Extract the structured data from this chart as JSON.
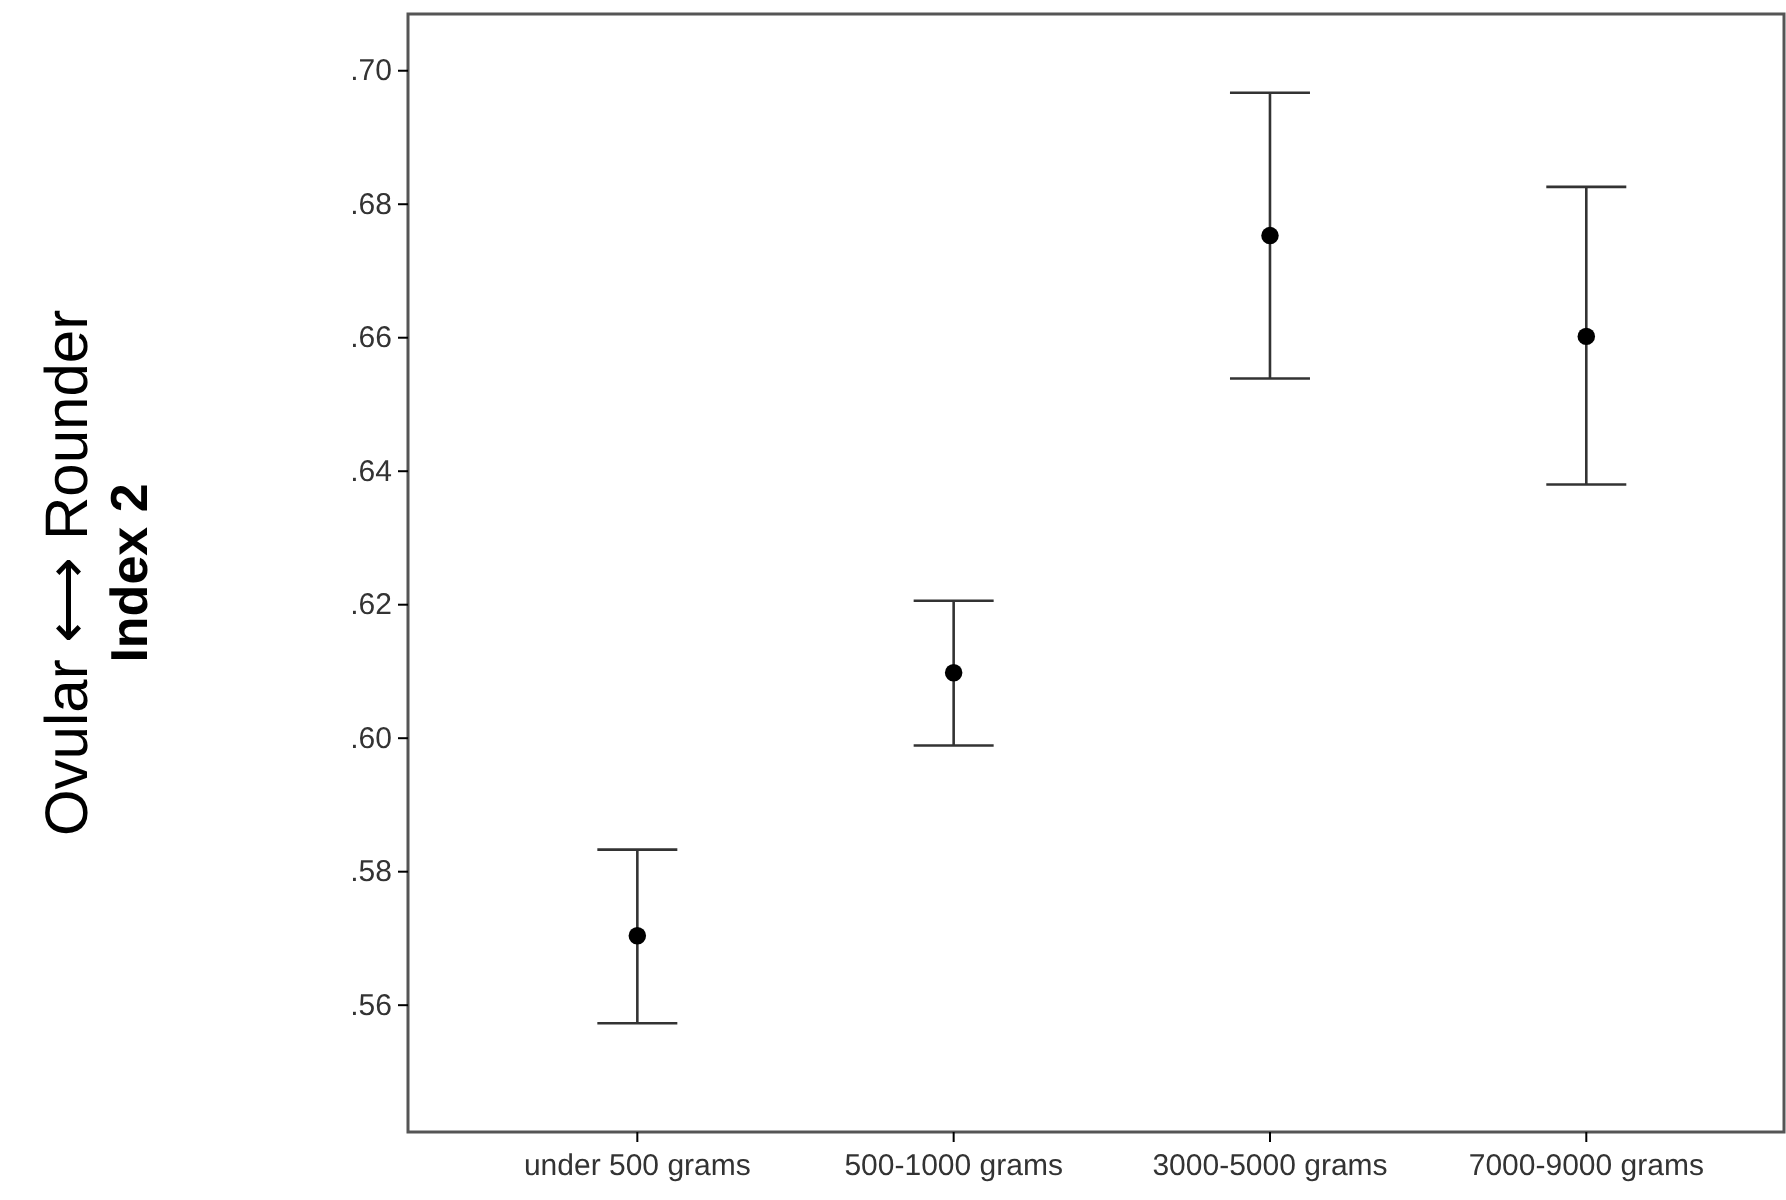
{
  "chart_data": {
    "type": "scatter",
    "ylabel": "Ovular ⟷ Rounder\nIndex 2",
    "categories": [
      "under 500 grams",
      "500-1000 grams",
      "3000-5000 grams",
      "7000-9000 grams"
    ],
    "series": [
      {
        "color": "#000000",
        "values": [
          0.5704,
          0.6098,
          0.6753,
          0.6602
        ],
        "errors": [
          [
            0.5573,
            0.5833
          ],
          [
            0.5989,
            0.6206
          ],
          [
            0.6539,
            0.6967
          ],
          [
            0.638,
            0.6826
          ]
        ]
      }
    ],
    "ylim": [
      0.541,
      0.7085
    ],
    "yticks": [
      {
        "value": 0.56,
        "label": ".56"
      },
      {
        "value": 0.58,
        "label": ".58"
      },
      {
        "value": 0.6,
        "label": ".60"
      },
      {
        "value": 0.62,
        "label": ".62"
      },
      {
        "value": 0.64,
        "label": ".64"
      },
      {
        "value": 0.66,
        "label": ".66"
      },
      {
        "value": 0.68,
        "label": ".68"
      },
      {
        "value": 0.7,
        "label": ".70"
      }
    ],
    "marker": "circle",
    "grid": false
  }
}
